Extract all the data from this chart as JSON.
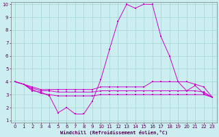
{
  "xlabel": "Windchill (Refroidissement éolien,°C)",
  "background_color": "#cceef0",
  "grid_color": "#99cccc",
  "line_color": "#cc00cc",
  "x": [
    0,
    1,
    2,
    3,
    4,
    5,
    6,
    7,
    8,
    9,
    10,
    11,
    12,
    13,
    14,
    15,
    16,
    17,
    18,
    19,
    20,
    21,
    22,
    23
  ],
  "y_main": [
    4.0,
    3.8,
    3.3,
    3.2,
    2.9,
    1.6,
    2.0,
    1.5,
    1.5,
    2.5,
    4.2,
    6.5,
    8.7,
    10.0,
    9.7,
    10.0,
    10.0,
    7.5,
    6.0,
    4.0,
    3.3,
    3.7,
    3.1,
    2.8
  ],
  "y_line2": [
    4.0,
    3.8,
    3.5,
    3.3,
    3.3,
    3.2,
    3.2,
    3.2,
    3.2,
    3.2,
    3.3,
    3.3,
    3.3,
    3.3,
    3.3,
    3.3,
    3.3,
    3.3,
    3.3,
    3.3,
    3.3,
    3.3,
    3.2,
    2.8
  ],
  "y_line3": [
    4.0,
    3.8,
    3.4,
    3.1,
    3.0,
    2.9,
    2.9,
    2.9,
    2.9,
    2.9,
    3.0,
    3.0,
    3.0,
    3.0,
    3.0,
    3.0,
    3.0,
    3.0,
    3.0,
    3.0,
    3.0,
    3.0,
    3.0,
    2.8
  ],
  "y_line4": [
    4.0,
    3.8,
    3.6,
    3.4,
    3.4,
    3.4,
    3.4,
    3.4,
    3.4,
    3.4,
    3.6,
    3.6,
    3.6,
    3.6,
    3.6,
    3.6,
    4.0,
    4.0,
    4.0,
    4.0,
    4.0,
    3.8,
    3.6,
    2.8
  ],
  "ylim_min": 1,
  "ylim_max": 10,
  "xlim_min": 0,
  "xlim_max": 23,
  "xticks": [
    0,
    1,
    2,
    3,
    4,
    5,
    6,
    7,
    8,
    9,
    10,
    11,
    12,
    13,
    14,
    15,
    16,
    17,
    18,
    19,
    20,
    21,
    22,
    23
  ],
  "yticks": [
    1,
    2,
    3,
    4,
    5,
    6,
    7,
    8,
    9,
    10
  ],
  "tick_fontsize": 5,
  "xlabel_fontsize": 5,
  "marker_size": 1.5,
  "line_width": 0.7
}
